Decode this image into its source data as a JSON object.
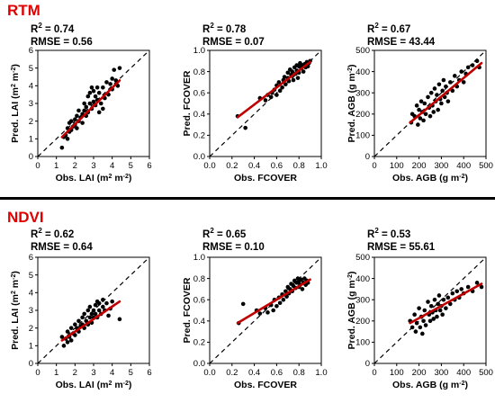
{
  "sections": [
    {
      "title": "RTM"
    },
    {
      "title": "NDVI"
    }
  ],
  "colors": {
    "title": "#e00000",
    "fit_line": "#c00000",
    "points": "#000000",
    "one_to_one": "#000000"
  },
  "chart_data": [
    {
      "type": "scatter",
      "section": "RTM",
      "r2_label": "R",
      "r2_sup": "2",
      "r2_value": " = 0.74",
      "rmse_text": "RMSE = 0.56",
      "xlabel": "Obs. LAI (m",
      "xlabel_sup": "2",
      "xlabel_mid": " m",
      "xlabel_sup2": "-2",
      "xlabel_end": ")",
      "ylabel": "Pred. LAI (m",
      "ylabel_sup": "2",
      "ylabel_mid": " m",
      "ylabel_sup2": "-2",
      "ylabel_end": ")",
      "xlim": [
        0,
        6
      ],
      "ylim": [
        0,
        6
      ],
      "xticks": [
        0,
        1,
        2,
        3,
        4,
        5,
        6
      ],
      "yticks": [
        0,
        1,
        2,
        3,
        4,
        5,
        6
      ],
      "tick_labels_x": [
        "0",
        "1",
        "2",
        "3",
        "4",
        "5",
        "6"
      ],
      "tick_labels_y": [
        "0",
        "1",
        "2",
        "3",
        "4",
        "5",
        "6"
      ],
      "fit": {
        "x": [
          1.3,
          4.4
        ],
        "y": [
          1.1,
          4.3
        ]
      },
      "points": [
        [
          1.3,
          0.5
        ],
        [
          1.4,
          1.1
        ],
        [
          1.5,
          1.2
        ],
        [
          1.6,
          1.0
        ],
        [
          1.6,
          1.6
        ],
        [
          1.7,
          1.4
        ],
        [
          1.7,
          1.9
        ],
        [
          1.8,
          1.5
        ],
        [
          1.8,
          2.0
        ],
        [
          1.9,
          1.7
        ],
        [
          2.0,
          1.8
        ],
        [
          2.0,
          2.1
        ],
        [
          2.1,
          1.6
        ],
        [
          2.1,
          2.3
        ],
        [
          2.2,
          2.0
        ],
        [
          2.2,
          2.6
        ],
        [
          2.3,
          2.2
        ],
        [
          2.4,
          2.4
        ],
        [
          2.4,
          1.9
        ],
        [
          2.5,
          2.6
        ],
        [
          2.5,
          3.0
        ],
        [
          2.6,
          2.3
        ],
        [
          2.6,
          2.8
        ],
        [
          2.7,
          3.4
        ],
        [
          2.7,
          2.5
        ],
        [
          2.8,
          3.0
        ],
        [
          2.8,
          3.6
        ],
        [
          2.9,
          2.7
        ],
        [
          2.9,
          3.9
        ],
        [
          3.0,
          3.1
        ],
        [
          3.0,
          3.7
        ],
        [
          3.1,
          2.9
        ],
        [
          3.1,
          3.4
        ],
        [
          3.2,
          3.9
        ],
        [
          3.2,
          3.2
        ],
        [
          3.3,
          2.5
        ],
        [
          3.3,
          3.6
        ],
        [
          3.4,
          3.0
        ],
        [
          3.5,
          2.7
        ],
        [
          3.5,
          3.9
        ],
        [
          3.6,
          3.3
        ],
        [
          3.7,
          4.2
        ],
        [
          3.8,
          3.5
        ],
        [
          3.9,
          4.1
        ],
        [
          4.0,
          4.4
        ],
        [
          4.0,
          3.8
        ],
        [
          4.1,
          4.9
        ],
        [
          4.2,
          4.3
        ],
        [
          4.3,
          4.0
        ],
        [
          4.4,
          5.0
        ]
      ]
    },
    {
      "type": "scatter",
      "section": "RTM",
      "r2_label": "R",
      "r2_sup": "2",
      "r2_value": " = 0.78",
      "rmse_text": "RMSE = 0.07",
      "xlabel": "Obs. FCOVER",
      "ylabel": "Pred. FCOVER",
      "xlim": [
        0,
        1.0
      ],
      "ylim": [
        0,
        1.0
      ],
      "xticks": [
        0,
        0.2,
        0.4,
        0.6,
        0.8,
        1.0
      ],
      "yticks": [
        0,
        0.2,
        0.4,
        0.6,
        0.8,
        1.0
      ],
      "tick_labels_x": [
        "0.0",
        "0.2",
        "0.4",
        "0.6",
        "0.8",
        "1.0"
      ],
      "tick_labels_y": [
        "0.0",
        "0.2",
        "0.4",
        "0.6",
        "0.8",
        "1.0"
      ],
      "fit": {
        "x": [
          0.25,
          0.9
        ],
        "y": [
          0.37,
          0.89
        ]
      },
      "points": [
        [
          0.25,
          0.38
        ],
        [
          0.32,
          0.27
        ],
        [
          0.45,
          0.55
        ],
        [
          0.5,
          0.53
        ],
        [
          0.52,
          0.58
        ],
        [
          0.55,
          0.56
        ],
        [
          0.56,
          0.6
        ],
        [
          0.58,
          0.63
        ],
        [
          0.6,
          0.58
        ],
        [
          0.6,
          0.67
        ],
        [
          0.62,
          0.7
        ],
        [
          0.63,
          0.62
        ],
        [
          0.65,
          0.65
        ],
        [
          0.66,
          0.72
        ],
        [
          0.67,
          0.75
        ],
        [
          0.68,
          0.68
        ],
        [
          0.7,
          0.74
        ],
        [
          0.7,
          0.79
        ],
        [
          0.71,
          0.71
        ],
        [
          0.72,
          0.82
        ],
        [
          0.73,
          0.77
        ],
        [
          0.74,
          0.8
        ],
        [
          0.75,
          0.72
        ],
        [
          0.76,
          0.84
        ],
        [
          0.77,
          0.78
        ],
        [
          0.78,
          0.86
        ],
        [
          0.78,
          0.81
        ],
        [
          0.79,
          0.74
        ],
        [
          0.8,
          0.85
        ],
        [
          0.8,
          0.79
        ],
        [
          0.81,
          0.88
        ],
        [
          0.82,
          0.83
        ],
        [
          0.83,
          0.86
        ],
        [
          0.84,
          0.8
        ],
        [
          0.85,
          0.87
        ],
        [
          0.86,
          0.84
        ],
        [
          0.87,
          0.89
        ],
        [
          0.88,
          0.85
        ],
        [
          0.89,
          0.88
        ],
        [
          0.9,
          0.9
        ]
      ]
    },
    {
      "type": "scatter",
      "section": "RTM",
      "r2_label": "R",
      "r2_sup": "2",
      "r2_value": " = 0.67",
      "rmse_text": "RMSE = 43.44",
      "xlabel": "Obs. AGB (g m",
      "xlabel_sup": "-2",
      "xlabel_end": ")",
      "ylabel": "Pred. AGB (g m",
      "ylabel_sup": "-2",
      "ylabel_end": ")",
      "xlim": [
        0,
        500
      ],
      "ylim": [
        0,
        500
      ],
      "xticks": [
        0,
        100,
        200,
        300,
        400,
        500
      ],
      "yticks": [
        0,
        100,
        200,
        300,
        400,
        500
      ],
      "tick_labels_x": [
        "0",
        "100",
        "200",
        "300",
        "400",
        "500"
      ],
      "tick_labels_y": [
        "0",
        "100",
        "200",
        "300",
        "400",
        "500"
      ],
      "fit": {
        "x": [
          160,
          480
        ],
        "y": [
          160,
          440
        ]
      },
      "points": [
        [
          165,
          160
        ],
        [
          170,
          200
        ],
        [
          180,
          190
        ],
        [
          190,
          240
        ],
        [
          195,
          150
        ],
        [
          200,
          220
        ],
        [
          205,
          180
        ],
        [
          210,
          260
        ],
        [
          215,
          210
        ],
        [
          220,
          170
        ],
        [
          225,
          250
        ],
        [
          230,
          200
        ],
        [
          240,
          280
        ],
        [
          245,
          230
        ],
        [
          250,
          190
        ],
        [
          255,
          300
        ],
        [
          260,
          240
        ],
        [
          265,
          210
        ],
        [
          270,
          320
        ],
        [
          275,
          260
        ],
        [
          280,
          290
        ],
        [
          285,
          220
        ],
        [
          290,
          340
        ],
        [
          295,
          270
        ],
        [
          300,
          250
        ],
        [
          305,
          310
        ],
        [
          310,
          360
        ],
        [
          315,
          280
        ],
        [
          320,
          330
        ],
        [
          325,
          300
        ],
        [
          330,
          260
        ],
        [
          340,
          350
        ],
        [
          350,
          310
        ],
        [
          360,
          380
        ],
        [
          370,
          330
        ],
        [
          380,
          360
        ],
        [
          390,
          400
        ],
        [
          400,
          350
        ],
        [
          410,
          390
        ],
        [
          420,
          420
        ],
        [
          440,
          430
        ],
        [
          460,
          450
        ],
        [
          470,
          420
        ]
      ]
    },
    {
      "type": "scatter",
      "section": "NDVI",
      "r2_label": "R",
      "r2_sup": "2",
      "r2_value": " = 0.62",
      "rmse_text": "RMSE = 0.64",
      "xlabel": "Obs. LAI (m",
      "xlabel_sup": "2",
      "xlabel_mid": " m",
      "xlabel_sup2": "-2",
      "xlabel_end": ")",
      "ylabel": "Pred. LAI (m",
      "ylabel_sup": "2",
      "ylabel_mid": " m",
      "ylabel_sup2": "-2",
      "ylabel_end": ")",
      "xlim": [
        0,
        6
      ],
      "ylim": [
        0,
        6
      ],
      "xticks": [
        0,
        1,
        2,
        3,
        4,
        5,
        6
      ],
      "yticks": [
        0,
        1,
        2,
        3,
        4,
        5,
        6
      ],
      "tick_labels_x": [
        "0",
        "1",
        "2",
        "3",
        "4",
        "5",
        "6"
      ],
      "tick_labels_y": [
        "0",
        "1",
        "2",
        "3",
        "4",
        "5",
        "6"
      ],
      "fit": {
        "x": [
          1.3,
          4.4
        ],
        "y": [
          1.3,
          3.5
        ]
      },
      "points": [
        [
          1.3,
          1.5
        ],
        [
          1.4,
          1.0
        ],
        [
          1.5,
          1.4
        ],
        [
          1.6,
          1.2
        ],
        [
          1.6,
          1.8
        ],
        [
          1.7,
          1.5
        ],
        [
          1.8,
          2.0
        ],
        [
          1.8,
          1.3
        ],
        [
          1.9,
          1.7
        ],
        [
          2.0,
          2.2
        ],
        [
          2.0,
          1.6
        ],
        [
          2.1,
          2.0
        ],
        [
          2.2,
          2.4
        ],
        [
          2.2,
          1.8
        ],
        [
          2.3,
          2.1
        ],
        [
          2.4,
          2.6
        ],
        [
          2.4,
          2.2
        ],
        [
          2.5,
          2.0
        ],
        [
          2.5,
          2.8
        ],
        [
          2.6,
          2.4
        ],
        [
          2.7,
          3.0
        ],
        [
          2.7,
          2.2
        ],
        [
          2.8,
          2.6
        ],
        [
          2.8,
          3.2
        ],
        [
          2.9,
          2.8
        ],
        [
          2.9,
          2.3
        ],
        [
          3.0,
          3.0
        ],
        [
          3.0,
          2.6
        ],
        [
          3.1,
          3.3
        ],
        [
          3.1,
          2.8
        ],
        [
          3.2,
          3.5
        ],
        [
          3.2,
          2.6
        ],
        [
          3.3,
          3.0
        ],
        [
          3.3,
          3.4
        ],
        [
          3.4,
          2.8
        ],
        [
          3.5,
          3.2
        ],
        [
          3.5,
          3.6
        ],
        [
          3.6,
          3.0
        ],
        [
          3.7,
          3.4
        ],
        [
          3.8,
          2.7
        ],
        [
          3.9,
          3.1
        ],
        [
          4.0,
          3.5
        ],
        [
          4.4,
          2.5
        ]
      ]
    },
    {
      "type": "scatter",
      "section": "NDVI",
      "r2_label": "R",
      "r2_sup": "2",
      "r2_value": " = 0.65",
      "rmse_text": "RMSE = 0.10",
      "xlabel": "Obs. FCOVER",
      "ylabel": "Pred. FCOVER",
      "xlim": [
        0,
        1.0
      ],
      "ylim": [
        0,
        1.0
      ],
      "xticks": [
        0,
        0.2,
        0.4,
        0.6,
        0.8,
        1.0
      ],
      "yticks": [
        0,
        0.2,
        0.4,
        0.6,
        0.8,
        1.0
      ],
      "tick_labels_x": [
        "0.0",
        "0.2",
        "0.4",
        "0.6",
        "0.8",
        "1.0"
      ],
      "tick_labels_y": [
        "0.0",
        "0.2",
        "0.4",
        "0.6",
        "0.8",
        "1.0"
      ],
      "fit": {
        "x": [
          0.25,
          0.9
        ],
        "y": [
          0.38,
          0.79
        ]
      },
      "points": [
        [
          0.26,
          0.38
        ],
        [
          0.3,
          0.56
        ],
        [
          0.42,
          0.5
        ],
        [
          0.45,
          0.47
        ],
        [
          0.5,
          0.52
        ],
        [
          0.52,
          0.48
        ],
        [
          0.55,
          0.55
        ],
        [
          0.57,
          0.5
        ],
        [
          0.58,
          0.6
        ],
        [
          0.6,
          0.54
        ],
        [
          0.62,
          0.62
        ],
        [
          0.63,
          0.57
        ],
        [
          0.65,
          0.65
        ],
        [
          0.66,
          0.6
        ],
        [
          0.68,
          0.68
        ],
        [
          0.69,
          0.63
        ],
        [
          0.7,
          0.72
        ],
        [
          0.71,
          0.66
        ],
        [
          0.72,
          0.7
        ],
        [
          0.73,
          0.75
        ],
        [
          0.74,
          0.68
        ],
        [
          0.75,
          0.73
        ],
        [
          0.76,
          0.78
        ],
        [
          0.77,
          0.71
        ],
        [
          0.78,
          0.76
        ],
        [
          0.79,
          0.8
        ],
        [
          0.8,
          0.72
        ],
        [
          0.8,
          0.77
        ],
        [
          0.81,
          0.74
        ],
        [
          0.82,
          0.79
        ],
        [
          0.83,
          0.7
        ],
        [
          0.84,
          0.76
        ],
        [
          0.85,
          0.8
        ],
        [
          0.86,
          0.74
        ],
        [
          0.87,
          0.78
        ],
        [
          0.88,
          0.76
        ]
      ]
    },
    {
      "type": "scatter",
      "section": "NDVI",
      "r2_label": "R",
      "r2_sup": "2",
      "r2_value": " = 0.53",
      "rmse_text": "RMSE = 55.61",
      "xlabel": "Obs. AGB (g m",
      "xlabel_sup": "-2",
      "xlabel_end": ")",
      "ylabel": "Pred. AGB (g m",
      "ylabel_sup": "-2",
      "ylabel_end": ")",
      "xlim": [
        0,
        500
      ],
      "ylim": [
        0,
        500
      ],
      "xticks": [
        0,
        100,
        200,
        300,
        400,
        500
      ],
      "yticks": [
        0,
        100,
        200,
        300,
        400,
        500
      ],
      "tick_labels_x": [
        "0",
        "100",
        "200",
        "300",
        "400",
        "500"
      ],
      "tick_labels_y": [
        "0",
        "100",
        "200",
        "300",
        "400",
        "500"
      ],
      "fit": {
        "x": [
          160,
          480
        ],
        "y": [
          190,
          375
        ]
      },
      "points": [
        [
          160,
          200
        ],
        [
          170,
          170
        ],
        [
          180,
          230
        ],
        [
          185,
          150
        ],
        [
          190,
          190
        ],
        [
          200,
          260
        ],
        [
          205,
          170
        ],
        [
          210,
          220
        ],
        [
          215,
          140
        ],
        [
          220,
          200
        ],
        [
          225,
          250
        ],
        [
          230,
          180
        ],
        [
          240,
          290
        ],
        [
          245,
          230
        ],
        [
          250,
          200
        ],
        [
          255,
          270
        ],
        [
          260,
          240
        ],
        [
          265,
          210
        ],
        [
          270,
          300
        ],
        [
          275,
          250
        ],
        [
          280,
          220
        ],
        [
          285,
          280
        ],
        [
          290,
          320
        ],
        [
          295,
          250
        ],
        [
          300,
          270
        ],
        [
          305,
          230
        ],
        [
          310,
          300
        ],
        [
          320,
          260
        ],
        [
          330,
          310
        ],
        [
          340,
          280
        ],
        [
          350,
          330
        ],
        [
          360,
          300
        ],
        [
          370,
          340
        ],
        [
          380,
          310
        ],
        [
          390,
          350
        ],
        [
          400,
          330
        ],
        [
          420,
          360
        ],
        [
          440,
          340
        ],
        [
          460,
          380
        ],
        [
          480,
          360
        ]
      ]
    }
  ]
}
